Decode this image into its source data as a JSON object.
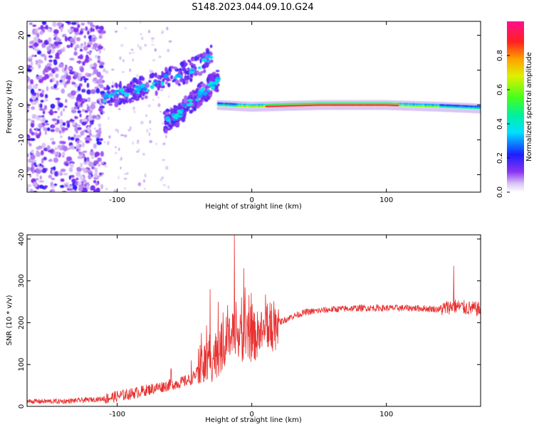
{
  "title": "S148.2023.044.09.10.G24",
  "chart_data": [
    {
      "type": "heatmap",
      "xlabel": "Height of straight line (km)",
      "ylabel": "Frequency (Hz)",
      "xlim": [
        -167,
        170
      ],
      "ylim": [
        -25,
        24
      ],
      "x_ticks": [
        -100,
        0,
        100
      ],
      "y_ticks": [
        -20,
        -10,
        0,
        10,
        20
      ],
      "grid": false,
      "colorbar": {
        "label": "Normalized spectral amplitude",
        "range": [
          0.0,
          1.0
        ],
        "ticks": [
          "0.0",
          "0.2",
          "0.4",
          "0.6",
          "0.8"
        ],
        "tick_values": [
          0.0,
          0.2,
          0.4,
          0.6,
          0.8
        ],
        "colormap": "rainbow (white-lavender-purple-blue-cyan-green-yellow-orange-red-magenta)"
      },
      "features": {
        "noise_region_x": [
          -167,
          -110
        ],
        "sparse_noise_x": [
          -110,
          -60
        ],
        "rising_arc_1": [
          [
            -110,
            2
          ],
          [
            -80,
            5
          ],
          [
            -60,
            8
          ],
          [
            -45,
            10
          ],
          [
            -30,
            14
          ]
        ],
        "rising_arc_2": [
          [
            -65,
            -5
          ],
          [
            -55,
            -3
          ],
          [
            -45,
            1
          ],
          [
            -35,
            4
          ],
          [
            -25,
            7
          ]
        ],
        "carrier_line": [
          [
            -25,
            0
          ],
          [
            0,
            -0.5
          ],
          [
            50,
            0
          ],
          [
            100,
            0
          ],
          [
            140,
            -0.5
          ],
          [
            170,
            -1
          ]
        ],
        "peak_amplitude_x": [
          10,
          110
        ]
      }
    },
    {
      "type": "line",
      "xlabel": "Height of straight line (km)",
      "ylabel": "SNR (10 * v/v)",
      "xlim": [
        -167,
        170
      ],
      "ylim": [
        0,
        410
      ],
      "x_ticks": [
        -100,
        0,
        100
      ],
      "y_ticks": [
        0,
        100,
        200,
        300,
        400
      ],
      "grid": false,
      "series": [
        {
          "color": "#e8302f",
          "anchors_x": [
            -167,
            -140,
            -110,
            -90,
            -70,
            -55,
            -45,
            -35,
            -25,
            -18,
            -10,
            0,
            10,
            20,
            30,
            40,
            60,
            80,
            100,
            120,
            140,
            150,
            160,
            170
          ],
          "anchors_y": [
            12,
            12,
            18,
            30,
            45,
            55,
            65,
            100,
            130,
            160,
            165,
            165,
            175,
            200,
            215,
            225,
            232,
            235,
            235,
            235,
            232,
            240,
            235,
            232
          ],
          "spikes": [
            [
              -60,
              90
            ],
            [
              -45,
              110
            ],
            [
              -31,
              280
            ],
            [
              -25,
              250
            ],
            [
              -13,
              410
            ],
            [
              -6,
              330
            ],
            [
              150,
              336
            ]
          ]
        }
      ]
    }
  ]
}
